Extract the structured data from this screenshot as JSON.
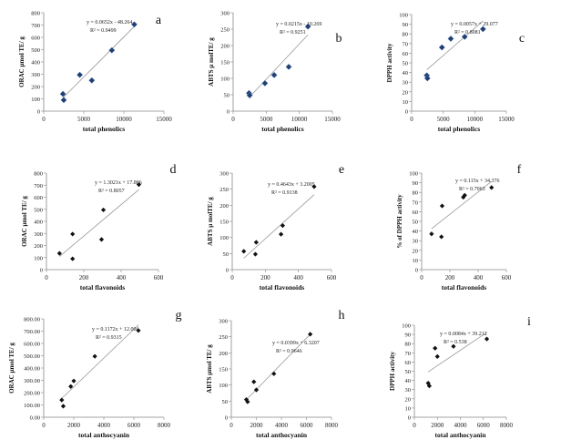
{
  "chart_data": [
    {
      "panel": "a",
      "type": "scatter",
      "xlabel": "total phenolics",
      "ylabel": "ORAC µmol TE/ g",
      "xlim": [
        0,
        15000
      ],
      "ylim": [
        0,
        800
      ],
      "xticks": [
        0,
        5000,
        10000,
        15000
      ],
      "xtick_labels": [
        "0",
        "5000",
        "10000",
        "15000"
      ],
      "yticks": [
        0,
        100,
        200,
        300,
        400,
        500,
        600,
        700,
        800
      ],
      "ytick_labels": [
        "0",
        "100",
        "200",
        "300",
        "400",
        "500",
        "600",
        "700",
        "800"
      ],
      "points": [
        [
          2400,
          140
        ],
        [
          2500,
          90
        ],
        [
          4500,
          295
        ],
        [
          6000,
          250
        ],
        [
          8500,
          495
        ],
        [
          11300,
          705
        ]
      ],
      "trend": {
        "slope": 0.0652,
        "intercept": -48.264,
        "x_range": [
          2400,
          11300
        ]
      },
      "equation": "y = 0.0652x - 48.264",
      "r2": "R² = 0.9499",
      "marker": "diamond-blue"
    },
    {
      "panel": "b",
      "type": "scatter",
      "xlabel": "total phenolics",
      "ylabel": "ABTS µ molTE/ g",
      "xlim": [
        0,
        15000
      ],
      "ylim": [
        0,
        300
      ],
      "xticks": [
        0,
        5000,
        10000,
        15000
      ],
      "xtick_labels": [
        "0",
        "5000",
        "10000",
        "15000"
      ],
      "yticks": [
        0,
        50,
        100,
        150,
        200,
        250,
        300
      ],
      "ytick_labels": [
        "0",
        "50",
        "100",
        "150",
        "200",
        "250",
        "300"
      ],
      "points": [
        [
          2400,
          55
        ],
        [
          2500,
          48
        ],
        [
          4800,
          85
        ],
        [
          6200,
          110
        ],
        [
          8400,
          135
        ],
        [
          11300,
          258
        ]
      ],
      "trend": {
        "slope": 0.0215,
        "intercept": -10.269,
        "x_range": [
          2400,
          11300
        ]
      },
      "equation": "y = 0.0215x - 10.269",
      "r2": "R² = 0.9251",
      "marker": "diamond-blue"
    },
    {
      "panel": "c",
      "type": "scatter",
      "xlabel": "total phenolics",
      "ylabel": "DPPH activity",
      "xlim": [
        0,
        15000
      ],
      "ylim": [
        0,
        100
      ],
      "xticks": [
        0,
        5000,
        10000,
        15000
      ],
      "xtick_labels": [
        "0",
        "5000",
        "10000",
        "15000"
      ],
      "yticks": [
        0,
        10,
        20,
        30,
        40,
        50,
        60,
        70,
        80,
        90,
        100
      ],
      "ytick_labels": [
        "0",
        "10",
        "20",
        "30",
        "40",
        "50",
        "60",
        "70",
        "80",
        "90",
        "100"
      ],
      "points": [
        [
          2400,
          37
        ],
        [
          2500,
          34
        ],
        [
          4800,
          66
        ],
        [
          6200,
          75
        ],
        [
          8400,
          77
        ],
        [
          11300,
          85
        ]
      ],
      "trend": {
        "slope": 0.0057,
        "intercept": 29.077,
        "x_range": [
          2400,
          11300
        ]
      },
      "equation": "y = 0.0057x + 29.077",
      "r2": "R² = 0.8081",
      "marker": "diamond-blue"
    },
    {
      "panel": "d",
      "type": "scatter",
      "xlabel": "total flavonoids",
      "ylabel": "ORAC µmol TE/ g",
      "xlim": [
        0,
        600
      ],
      "ylim": [
        0,
        800
      ],
      "xticks": [
        0,
        200,
        400,
        600
      ],
      "xtick_labels": [
        "0",
        "200",
        "400",
        "600"
      ],
      "yticks": [
        0,
        100,
        200,
        300,
        400,
        500,
        600,
        700,
        800
      ],
      "ytick_labels": [
        "0",
        "100",
        "200",
        "300",
        "400",
        "500",
        "600",
        "700",
        "800"
      ],
      "points": [
        [
          70,
          135
        ],
        [
          140,
          90
        ],
        [
          140,
          295
        ],
        [
          295,
          250
        ],
        [
          305,
          495
        ],
        [
          495,
          705
        ]
      ],
      "trend": {
        "slope": 1.3021,
        "intercept": 17.886,
        "x_range": [
          70,
          495
        ]
      },
      "equation": "y = 1.3021x + 17.886",
      "r2": "R² = 0.8057",
      "marker": "diamond-black"
    },
    {
      "panel": "e",
      "type": "scatter",
      "xlabel": "total flavonoids",
      "ylabel": "ABTS µ molTE/ g",
      "xlim": [
        0,
        600
      ],
      "ylim": [
        0,
        300
      ],
      "xticks": [
        0,
        200,
        400,
        600
      ],
      "xtick_labels": [
        "0",
        "200",
        "400",
        "600"
      ],
      "yticks": [
        0,
        50,
        100,
        150,
        200,
        250,
        300
      ],
      "ytick_labels": [
        "0",
        "50",
        "100",
        "150",
        "200",
        "250",
        "300"
      ],
      "points": [
        [
          70,
          57
        ],
        [
          140,
          48
        ],
        [
          145,
          85
        ],
        [
          295,
          110
        ],
        [
          305,
          137
        ],
        [
          495,
          258
        ]
      ],
      "trend": {
        "slope": 0.4643,
        "intercept": 3.2005,
        "x_range": [
          70,
          495
        ]
      },
      "equation": "y = 0.4643x + 3.2005",
      "r2": "R² = 0.9138",
      "marker": "diamond-black"
    },
    {
      "panel": "f",
      "type": "scatter",
      "xlabel": "total flavonoids",
      "ylabel": "% of DPPH activity",
      "xlim": [
        0,
        600
      ],
      "ylim": [
        0,
        100
      ],
      "xticks": [
        0,
        200,
        400,
        600
      ],
      "xtick_labels": [
        "0",
        "200",
        "400",
        "600"
      ],
      "yticks": [
        0,
        10,
        20,
        30,
        40,
        50,
        60,
        70,
        80,
        90,
        100
      ],
      "ytick_labels": [
        "0",
        "10",
        "20",
        "30",
        "40",
        "50",
        "60",
        "70",
        "80",
        "90",
        "100"
      ],
      "points": [
        [
          70,
          37
        ],
        [
          140,
          34
        ],
        [
          145,
          66
        ],
        [
          295,
          75
        ],
        [
          305,
          77
        ],
        [
          495,
          85
        ]
      ],
      "trend": {
        "slope": 0.115,
        "intercept": 34.376,
        "x_range": [
          70,
          495
        ]
      },
      "equation": "y = 0.115x + 34.376",
      "r2": "R² = 0.7063",
      "marker": "diamond-black"
    },
    {
      "panel": "g",
      "type": "scatter",
      "xlabel": "total anthocyanin",
      "ylabel": "ORAC µmol TE/ g",
      "xlim": [
        0,
        8000
      ],
      "ylim": [
        0,
        800
      ],
      "xticks": [
        0,
        2000,
        4000,
        6000,
        8000
      ],
      "xtick_labels": [
        "0",
        "2000",
        "4000",
        "6000",
        "8000"
      ],
      "yticks": [
        0,
        100,
        200,
        300,
        400,
        500,
        600,
        700,
        800
      ],
      "ytick_labels": [
        "0.00",
        "100.00",
        "200.00",
        "300.00",
        "400.00",
        "500.00",
        "600.00",
        "700.00",
        "800.00"
      ],
      "points": [
        [
          1200,
          140
        ],
        [
          1300,
          90
        ],
        [
          1800,
          250
        ],
        [
          2000,
          295
        ],
        [
          3400,
          495
        ],
        [
          6300,
          705
        ]
      ],
      "trend": {
        "slope": 0.1172,
        "intercept": 12.004,
        "x_range": [
          1200,
          6300
        ]
      },
      "equation": "y = 0.1172x + 12.004",
      "r2": "R² = 0.9315",
      "marker": "diamond-black"
    },
    {
      "panel": "h",
      "type": "scatter",
      "xlabel": "total anthocyanin",
      "ylabel": "ABTS µmol TE/ g",
      "xlim": [
        0,
        8000
      ],
      "ylim": [
        0,
        300
      ],
      "xticks": [
        0,
        2000,
        4000,
        6000,
        8000
      ],
      "xtick_labels": [
        "0",
        "2000",
        "4000",
        "6000",
        "8000"
      ],
      "yticks": [
        0,
        50,
        100,
        150,
        200,
        250,
        300
      ],
      "ytick_labels": [
        "0",
        "50",
        "100",
        "150",
        "200",
        "250",
        "300"
      ],
      "points": [
        [
          1200,
          55
        ],
        [
          1300,
          48
        ],
        [
          1800,
          110
        ],
        [
          2000,
          85
        ],
        [
          3400,
          135
        ],
        [
          6300,
          258
        ]
      ],
      "trend": {
        "slope": 0.0399,
        "intercept": 6.3207,
        "x_range": [
          1200,
          6300
        ]
      },
      "equation": "y = 0.0399x + 6.3207",
      "r2": "R² = 0.9646",
      "marker": "diamond-black"
    },
    {
      "panel": "i",
      "type": "scatter",
      "xlabel": "total anthocyanin",
      "ylabel": "DPPH activity",
      "xlim": [
        0,
        8000
      ],
      "ylim": [
        0,
        100
      ],
      "xticks": [
        0,
        2000,
        4000,
        6000,
        8000
      ],
      "xtick_labels": [
        "0",
        "2000",
        "4000",
        "6000",
        "8000"
      ],
      "yticks": [
        0,
        10,
        20,
        30,
        40,
        50,
        60,
        70,
        80,
        90,
        100
      ],
      "ytick_labels": [
        "0",
        "10",
        "20",
        "30",
        "40",
        "50",
        "60",
        "70",
        "80",
        "90",
        "100"
      ],
      "points": [
        [
          1200,
          37
        ],
        [
          1300,
          34
        ],
        [
          1800,
          75
        ],
        [
          2000,
          66
        ],
        [
          3400,
          77
        ],
        [
          6300,
          85
        ]
      ],
      "trend": {
        "slope": 0.0084,
        "intercept": 39.212,
        "x_range": [
          1200,
          6300
        ]
      },
      "equation": "y = 0.0084x + 39.212",
      "r2": "R² = 0.538",
      "marker": "diamond-black"
    }
  ],
  "colors": {
    "marker_blue": "#1f3f73",
    "marker_black": "#111111",
    "trend_line": "#999999",
    "axis": "#888888"
  }
}
